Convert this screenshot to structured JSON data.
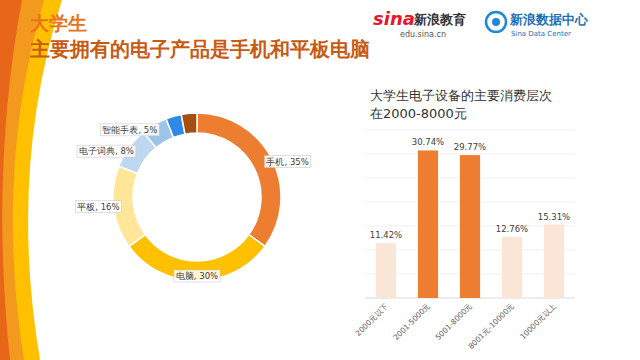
{
  "header": {
    "title_line1": "大学生",
    "title_line2": "主要拥有的电子产品是手机和平板电脑",
    "logo1_brand": "sina",
    "logo1_name": "新浪教育",
    "logo1_url": "edu.sina.cn",
    "logo2_name": "新浪数据中心",
    "logo2_sub": "Sina Data Center"
  },
  "chart_data": [
    {
      "type": "pie",
      "categories": [
        "手机",
        "电脑",
        "平板",
        "电子词典",
        "智能手表",
        null,
        null
      ],
      "values": [
        35,
        30,
        16,
        8,
        5,
        3,
        3
      ],
      "value_labels": [
        "手机, 35%",
        "电脑, 30%",
        "平板, 16%",
        "电子词典, 8%",
        "智能手表, 5%",
        null,
        null
      ],
      "colors": [
        "#ed7d31",
        "#ffc000",
        "#ffe699",
        "#bdd7ee",
        "#9dc3e6",
        "#2e8ae6",
        "#a5500f"
      ],
      "data_labels": true
    },
    {
      "type": "bar",
      "title": "大学生电子设备的主要消费层次\n在2000-8000元",
      "categories": [
        "2000元以下",
        "2001-5000元",
        "5001-8000元",
        "8001元-10000元",
        "10000元以上"
      ],
      "values": [
        11.42,
        30.74,
        29.77,
        12.76,
        15.31
      ],
      "value_labels": [
        "11.42%",
        "30.74%",
        "29.77%",
        "12.76%",
        "15.31%"
      ],
      "colors": [
        "#fbe5d6",
        "#ed7d31",
        "#ed7d31",
        "#fbe5d6",
        "#fbe5d6"
      ],
      "ylim": [
        0,
        35
      ],
      "yticks": [
        0,
        5,
        10,
        15,
        20,
        25,
        30,
        35
      ],
      "grid": true,
      "tick_labels": "x",
      "data_labels": true
    }
  ]
}
